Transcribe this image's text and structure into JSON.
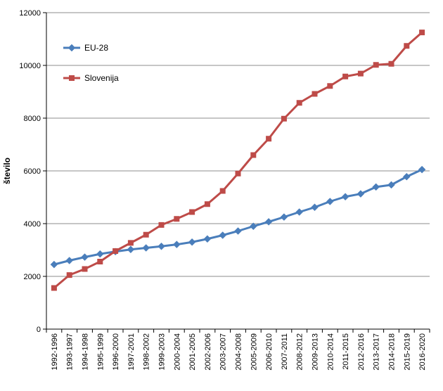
{
  "chart_data": {
    "type": "line",
    "title": "",
    "xlabel": "",
    "ylabel": "število",
    "ylim": [
      0,
      12000
    ],
    "yticks": [
      0,
      2000,
      4000,
      6000,
      8000,
      10000,
      12000
    ],
    "grid": true,
    "legend_position": "top-left",
    "categories": [
      "1992-1996",
      "1993-1997",
      "1994-1998",
      "1995-1999",
      "1996-2000",
      "1997-2001",
      "1998-2002",
      "1999-2003",
      "2000-2004",
      "2001-2005",
      "2002-2006",
      "2003-2007",
      "2004-2008",
      "2005-2009",
      "2006-2010",
      "2007-2011",
      "2008-2012",
      "2009-2013",
      "2010-2014",
      "2011-2015",
      "2012-2016",
      "2013-2017",
      "2014-2018",
      "2015-2019",
      "2016-2020"
    ],
    "series": [
      {
        "name": "EU-28",
        "color": "#4a7ebb",
        "marker": "diamond",
        "values": [
          2450,
          2600,
          2730,
          2850,
          2940,
          3020,
          3080,
          3140,
          3210,
          3300,
          3420,
          3560,
          3720,
          3900,
          4070,
          4250,
          4440,
          4620,
          4840,
          5020,
          5130,
          5390,
          5470,
          5780,
          6050
        ]
      },
      {
        "name": "Slovenija",
        "color": "#be4b48",
        "marker": "square",
        "values": [
          1560,
          2050,
          2280,
          2560,
          2960,
          3270,
          3580,
          3950,
          4180,
          4440,
          4740,
          5240,
          5900,
          6600,
          7220,
          7980,
          8580,
          8920,
          9220,
          9580,
          9690,
          10020,
          10060,
          10740,
          11250
        ]
      }
    ]
  }
}
